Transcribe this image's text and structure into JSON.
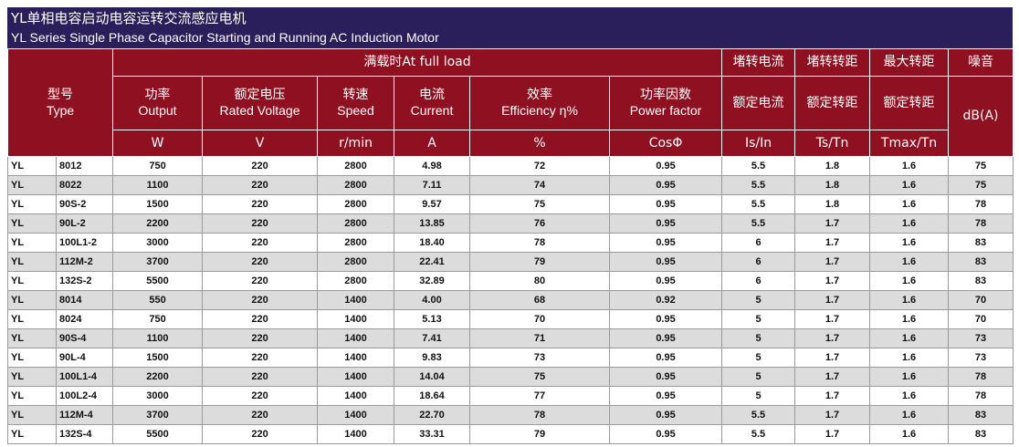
{
  "title": {
    "cn": "YL单相电容启动电容运转交流感应电机",
    "en": "YL Series Single Phase Capacitor Starting and Running AC Induction Motor"
  },
  "header": {
    "type_cn": "型号",
    "type_en": "Type",
    "full_load": "满载时At full load",
    "locked_current": "堵转电流",
    "locked_torque": "堵转转距",
    "max_torque": "最大转距",
    "noise": "噪音",
    "output_cn": "功率",
    "output_en": "Output",
    "voltage_cn": "额定电压",
    "voltage_en": "Rated Voltage",
    "speed_cn": "转速",
    "speed_en": "Speed",
    "current_cn": "电流",
    "current_en": "Current",
    "eff_cn": "效率",
    "eff_en": "Efficiency η%",
    "pf_cn": "功率因数",
    "pf_en": "Power factor",
    "rated_current": "额定电流",
    "rated_torque": "额定转距",
    "rated_torque_2": "额定转距",
    "noise_unit": "dB(A)",
    "unit_w": "W",
    "unit_v": "V",
    "unit_rpm": "r/min",
    "unit_a": "A",
    "unit_pct": "%",
    "unit_cos": "CosΦ",
    "unit_is": "Is/In",
    "unit_ts": "Ts/Tn",
    "unit_tmax": "Tmax/Tn"
  },
  "rows": [
    [
      "YL",
      "8012",
      "750",
      "220",
      "2800",
      "4.98",
      "72",
      "0.95",
      "5.5",
      "1.8",
      "1.6",
      "75"
    ],
    [
      "YL",
      "8022",
      "1100",
      "220",
      "2800",
      "7.11",
      "74",
      "0.95",
      "5.5",
      "1.8",
      "1.6",
      "75"
    ],
    [
      "YL",
      "90S-2",
      "1500",
      "220",
      "2800",
      "9.57",
      "75",
      "0.95",
      "5.5",
      "1.8",
      "1.6",
      "78"
    ],
    [
      "YL",
      "90L-2",
      "2200",
      "220",
      "2800",
      "13.85",
      "76",
      "0.95",
      "5.5",
      "1.7",
      "1.6",
      "78"
    ],
    [
      "YL",
      "100L1-2",
      "3000",
      "220",
      "2800",
      "18.40",
      "78",
      "0.95",
      "6",
      "1.7",
      "1.6",
      "83"
    ],
    [
      "YL",
      "112M-2",
      "3700",
      "220",
      "2800",
      "22.41",
      "79",
      "0.95",
      "6",
      "1.7",
      "1.6",
      "83"
    ],
    [
      "YL",
      "132S-2",
      "5500",
      "220",
      "2800",
      "32.89",
      "80",
      "0.95",
      "6",
      "1.7",
      "1.6",
      "83"
    ],
    [
      "YL",
      "8014",
      "550",
      "220",
      "1400",
      "4.00",
      "68",
      "0.92",
      "5",
      "1.7",
      "1.6",
      "70"
    ],
    [
      "YL",
      "8024",
      "750",
      "220",
      "1400",
      "5.13",
      "70",
      "0.95",
      "5",
      "1.7",
      "1.6",
      "70"
    ],
    [
      "YL",
      "90S-4",
      "1100",
      "220",
      "1400",
      "7.41",
      "71",
      "0.95",
      "5",
      "1.7",
      "1.6",
      "73"
    ],
    [
      "YL",
      "90L-4",
      "1500",
      "220",
      "1400",
      "9.83",
      "73",
      "0.95",
      "5",
      "1.7",
      "1.6",
      "73"
    ],
    [
      "YL",
      "100L1-4",
      "2200",
      "220",
      "1400",
      "14.04",
      "75",
      "0.95",
      "5",
      "1.7",
      "1.6",
      "78"
    ],
    [
      "YL",
      "100L2-4",
      "3000",
      "220",
      "1400",
      "18.64",
      "77",
      "0.95",
      "5",
      "1.7",
      "1.6",
      "78"
    ],
    [
      "YL",
      "112M-4",
      "3700",
      "220",
      "1400",
      "22.70",
      "78",
      "0.95",
      "5.5",
      "1.7",
      "1.6",
      "83"
    ],
    [
      "YL",
      "132S-4",
      "5500",
      "220",
      "1400",
      "33.31",
      "79",
      "0.95",
      "5.5",
      "1.7",
      "1.6",
      "83"
    ]
  ]
}
